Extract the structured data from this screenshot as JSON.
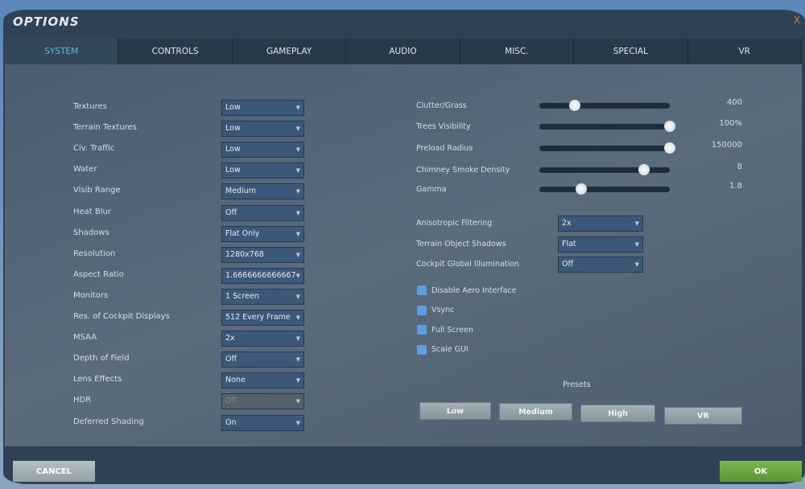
{
  "window": {
    "title": "OPTIONS",
    "close": "X"
  },
  "tabs": [
    {
      "label": "SYSTEM",
      "active": true
    },
    {
      "label": "CONTROLS"
    },
    {
      "label": "GAMEPLAY"
    },
    {
      "label": "AUDIO"
    },
    {
      "label": "MISC."
    },
    {
      "label": "SPECIAL"
    },
    {
      "label": "VR"
    }
  ],
  "left_settings": [
    {
      "label": "Textures",
      "value": "Low"
    },
    {
      "label": "Terrain Textures",
      "value": "Low"
    },
    {
      "label": "Civ. Traffic",
      "value": "Low"
    },
    {
      "label": "Water",
      "value": "Low"
    },
    {
      "label": "Visib Range",
      "value": "Medium"
    },
    {
      "label": "Heat Blur",
      "value": "Off"
    },
    {
      "label": "Shadows",
      "value": "Flat Only"
    },
    {
      "label": "Resolution",
      "value": "1280x768"
    },
    {
      "label": "Aspect Ratio",
      "value": "1.6666666666667"
    },
    {
      "label": "Monitors",
      "value": "1 Screen"
    },
    {
      "label": "Res. of Cockpit Displays",
      "value": "512 Every Frame"
    },
    {
      "label": "MSAA",
      "value": "2x"
    },
    {
      "label": "Depth of Field",
      "value": "Off"
    },
    {
      "label": "Lens Effects",
      "value": "None"
    },
    {
      "label": "HDR",
      "value": "Off",
      "disabled": true
    },
    {
      "label": "Deferred Shading",
      "value": "On"
    }
  ],
  "sliders": [
    {
      "label": "Clutter/Grass",
      "value": "400",
      "level": 0.27
    },
    {
      "label": "Trees Visibility",
      "value": "100%",
      "level": 1.0
    },
    {
      "label": "Preload Radius",
      "value": "150000",
      "level": 1.0
    },
    {
      "label": "Chimney Smoke Density",
      "value": "8",
      "level": 0.8
    },
    {
      "label": "Gamma",
      "value": "1.8",
      "level": 0.32
    }
  ],
  "right_dropdowns": [
    {
      "label": "Anisotropic Filtering",
      "value": "2x"
    },
    {
      "label": "Terrain Object Shadows",
      "value": "Flat"
    },
    {
      "label": "Cockpit Global Illumination",
      "value": "Off"
    }
  ],
  "checkboxes": [
    {
      "label": "Disable Aero Interface",
      "checked": false
    },
    {
      "label": "Vsync",
      "checked": false
    },
    {
      "label": "Full Screen",
      "checked": false
    },
    {
      "label": "Scale GUI",
      "checked": false
    }
  ],
  "presets": {
    "label": "Presets",
    "buttons": [
      "Low",
      "Medium",
      "High",
      "VR"
    ]
  },
  "footer": {
    "cancel": "CANCEL",
    "ok": "OK"
  },
  "colors": {
    "accent_tab": "#5fb6d6",
    "ok": "#6aa23e",
    "checkbox": "#5e9ee0"
  }
}
